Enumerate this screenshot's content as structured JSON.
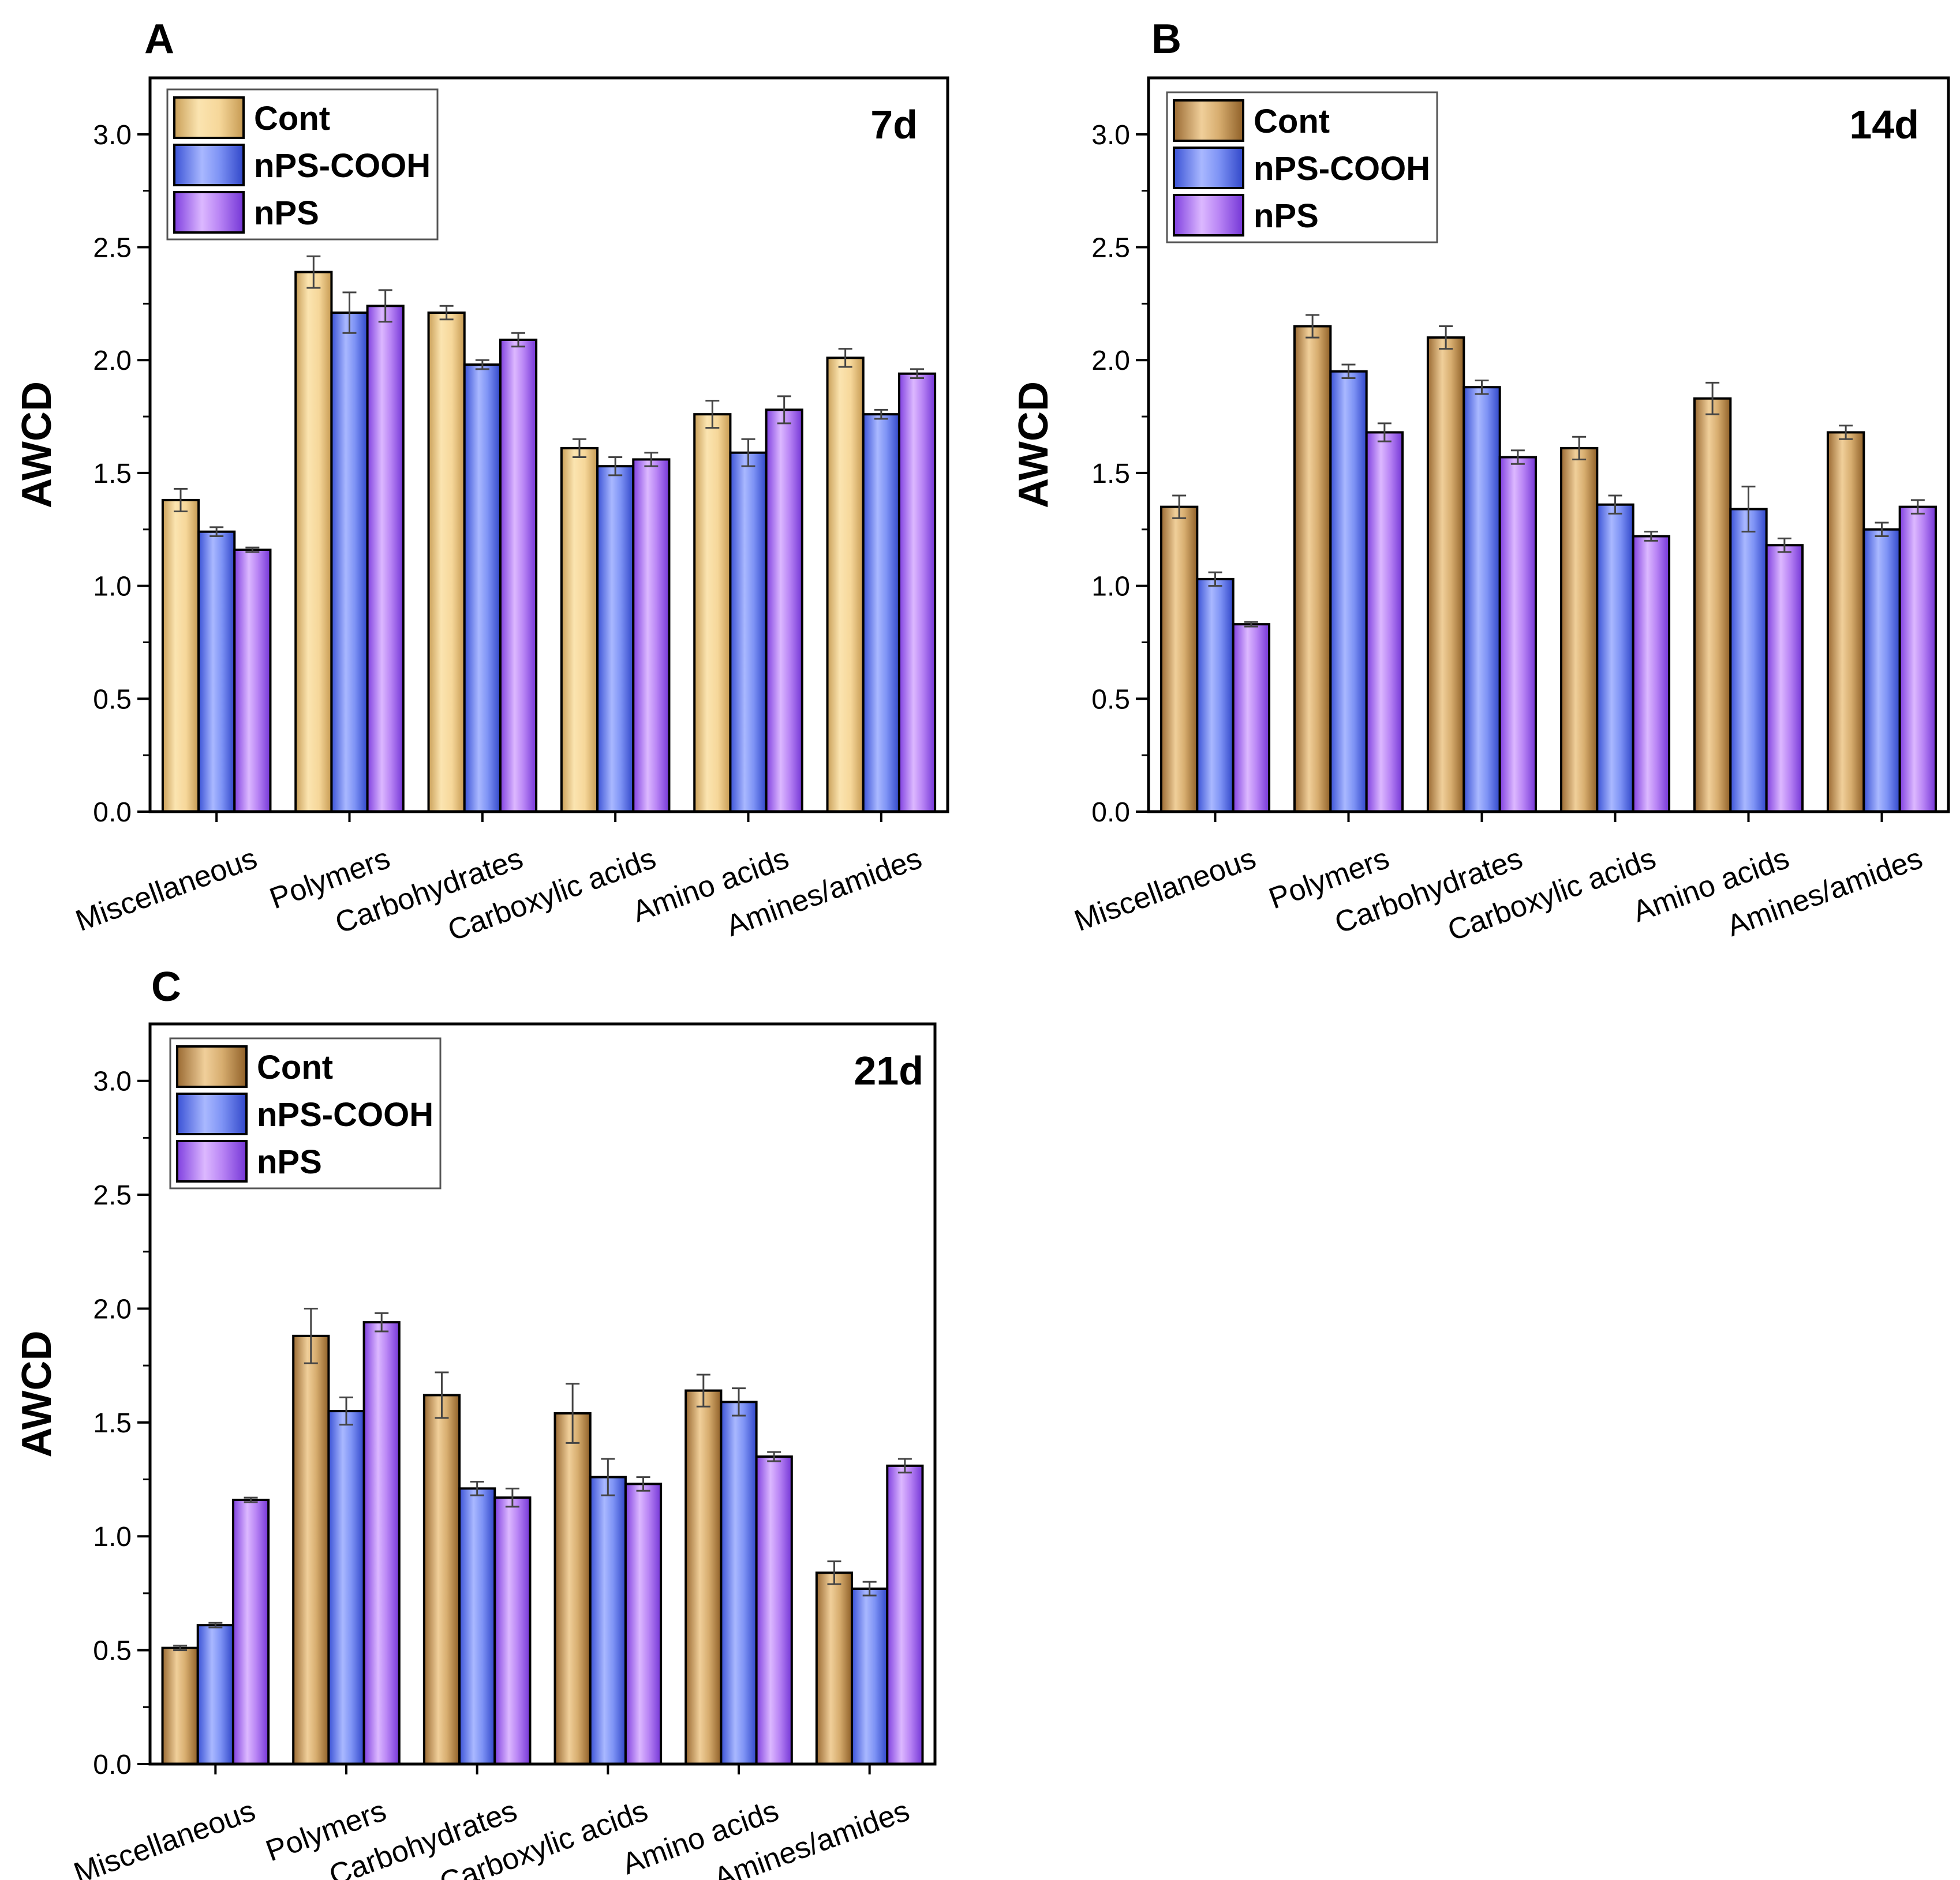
{
  "chart_data": [
    {
      "type": "bar",
      "panel": "A",
      "title": "7d",
      "xlabel": "",
      "ylabel": "AWCD",
      "ylim": [
        0,
        3.25
      ],
      "yticks": [
        "0.0",
        "0.5",
        "1.0",
        "1.5",
        "2.0",
        "2.5",
        "3.0"
      ],
      "categories": [
        "Miscellaneous",
        "Polymers",
        "Carbohydrates",
        "Carboxylic acids",
        "Amino acids",
        "Amines/amides"
      ],
      "legend": [
        "Cont",
        "nPS-COOH",
        "nPS"
      ],
      "legend_position": "top-left",
      "series": [
        {
          "name": "Cont",
          "values": [
            1.38,
            2.39,
            2.21,
            1.61,
            1.76,
            2.01
          ],
          "errors": [
            0.05,
            0.07,
            0.03,
            0.04,
            0.06,
            0.04
          ]
        },
        {
          "name": "nPS-COOH",
          "values": [
            1.24,
            2.21,
            1.98,
            1.53,
            1.59,
            1.76
          ],
          "errors": [
            0.02,
            0.09,
            0.02,
            0.04,
            0.06,
            0.02
          ]
        },
        {
          "name": "nPS",
          "values": [
            1.16,
            2.24,
            2.09,
            1.56,
            1.78,
            1.94
          ],
          "errors": [
            0.01,
            0.07,
            0.03,
            0.03,
            0.06,
            0.02
          ]
        }
      ]
    },
    {
      "type": "bar",
      "panel": "B",
      "title": "14d",
      "xlabel": "",
      "ylabel": "AWCD",
      "ylim": [
        0,
        3.25
      ],
      "yticks": [
        "0.0",
        "0.5",
        "1.0",
        "1.5",
        "2.0",
        "2.5",
        "3.0"
      ],
      "categories": [
        "Miscellaneous",
        "Polymers",
        "Carbohydrates",
        "Carboxylic acids",
        "Amino acids",
        "Amines/amides"
      ],
      "legend": [
        "Cont",
        "nPS-COOH",
        "nPS"
      ],
      "legend_position": "top-left",
      "series": [
        {
          "name": "Cont",
          "values": [
            1.35,
            2.15,
            2.1,
            1.61,
            1.83,
            1.68
          ],
          "errors": [
            0.05,
            0.05,
            0.05,
            0.05,
            0.07,
            0.03
          ]
        },
        {
          "name": "nPS-COOH",
          "values": [
            1.03,
            1.95,
            1.88,
            1.36,
            1.34,
            1.25
          ],
          "errors": [
            0.03,
            0.03,
            0.03,
            0.04,
            0.1,
            0.03
          ]
        },
        {
          "name": "nPS",
          "values": [
            0.83,
            1.68,
            1.57,
            1.22,
            1.18,
            1.35
          ],
          "errors": [
            0.01,
            0.04,
            0.03,
            0.02,
            0.03,
            0.03
          ]
        }
      ]
    },
    {
      "type": "bar",
      "panel": "C",
      "title": "21d",
      "xlabel": "",
      "ylabel": "AWCD",
      "ylim": [
        0,
        3.25
      ],
      "yticks": [
        "0.0",
        "0.5",
        "1.0",
        "1.5",
        "2.0",
        "2.5",
        "3.0"
      ],
      "categories": [
        "Miscellaneous",
        "Polymers",
        "Carbohydrates",
        "Carboxylic acids",
        "Amino acids",
        "Amines/amides"
      ],
      "legend": [
        "Cont",
        "nPS-COOH",
        "nPS"
      ],
      "legend_position": "top-left",
      "series": [
        {
          "name": "Cont",
          "values": [
            0.51,
            1.88,
            1.62,
            1.54,
            1.64,
            0.84
          ],
          "errors": [
            0.01,
            0.12,
            0.1,
            0.13,
            0.07,
            0.05
          ]
        },
        {
          "name": "nPS-COOH",
          "values": [
            0.61,
            1.55,
            1.21,
            1.26,
            1.59,
            0.77
          ],
          "errors": [
            0.01,
            0.06,
            0.03,
            0.08,
            0.06,
            0.03
          ]
        },
        {
          "name": "nPS",
          "values": [
            1.16,
            1.94,
            1.17,
            1.23,
            1.35,
            1.31
          ],
          "errors": [
            0.01,
            0.04,
            0.04,
            0.03,
            0.02,
            0.03
          ]
        }
      ]
    }
  ],
  "colors": {
    "cont_A": "#f2cf8f",
    "cont_B": "#c9975a",
    "npscooh": "#6f86ee",
    "nps": "#b27cf2",
    "axis": "#000000"
  }
}
